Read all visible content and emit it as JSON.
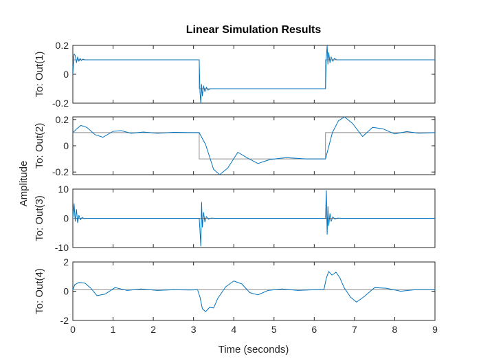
{
  "chart_data": {
    "type": "line",
    "title": "Linear Simulation Results",
    "xlabel": "Time (seconds)",
    "ylabel": "Amplitude",
    "xlim": [
      0,
      9
    ],
    "xticks": [
      0,
      1,
      2,
      3,
      4,
      5,
      6,
      7,
      8,
      9
    ],
    "colors": {
      "response": "#0072BD",
      "input": "#8c8c8c"
    },
    "panels": [
      {
        "ylabel": "To: Out(1)",
        "ylim": [
          -0.2,
          0.2
        ],
        "yticks": [
          -0.2,
          0,
          0.2
        ],
        "input": {
          "x": [
            0,
            3.14,
            3.14,
            6.28,
            6.28,
            9
          ],
          "y": [
            0.1,
            0.1,
            -0.1,
            -0.1,
            0.1,
            0.1
          ]
        },
        "response": {
          "x": [
            0,
            0.03,
            0.06,
            0.09,
            0.12,
            0.15,
            0.18,
            0.21,
            0.25,
            0.3,
            0.4,
            3.14,
            3.16,
            3.18,
            3.2,
            3.22,
            3.25,
            3.28,
            3.32,
            3.36,
            3.42,
            3.5,
            6.28,
            6.3,
            6.32,
            6.34,
            6.36,
            6.39,
            6.42,
            6.46,
            6.5,
            6.56,
            6.64,
            9
          ],
          "y": [
            0,
            0.14,
            0.13,
            0.08,
            0.12,
            0.09,
            0.11,
            0.095,
            0.105,
            0.1,
            0.1,
            0.1,
            -0.12,
            -0.2,
            -0.07,
            -0.15,
            -0.08,
            -0.12,
            -0.09,
            -0.11,
            -0.1,
            -0.1,
            -0.1,
            0.12,
            0.2,
            0.07,
            0.15,
            0.08,
            0.12,
            0.09,
            0.11,
            0.1,
            0.1,
            0.1
          ]
        }
      },
      {
        "ylabel": "To: Out(2)",
        "ylim": [
          -0.22,
          0.22
        ],
        "yticks": [
          -0.2,
          0,
          0.2
        ],
        "input": {
          "x": [
            0,
            3.14,
            3.14,
            6.28,
            6.28,
            9
          ],
          "y": [
            0.1,
            0.1,
            -0.1,
            -0.1,
            0.1,
            0.1
          ]
        },
        "response": {
          "x": [
            0,
            0.1,
            0.2,
            0.35,
            0.55,
            0.75,
            1.0,
            1.2,
            1.45,
            1.75,
            2.1,
            2.5,
            2.9,
            3.14,
            3.3,
            3.5,
            3.65,
            3.85,
            4.1,
            4.35,
            4.6,
            4.9,
            5.3,
            5.8,
            6.28,
            6.45,
            6.6,
            6.75,
            6.95,
            7.2,
            7.45,
            7.7,
            8.0,
            8.3,
            8.6,
            9.0
          ],
          "y": [
            0.1,
            0.13,
            0.155,
            0.14,
            0.085,
            0.065,
            0.11,
            0.115,
            0.095,
            0.105,
            0.095,
            0.102,
            0.1,
            0.1,
            0.01,
            -0.18,
            -0.22,
            -0.17,
            -0.05,
            -0.095,
            -0.135,
            -0.105,
            -0.09,
            -0.1,
            -0.1,
            0.1,
            0.19,
            0.22,
            0.17,
            0.07,
            0.14,
            0.13,
            0.09,
            0.108,
            0.096,
            0.1
          ]
        }
      },
      {
        "ylabel": "To: Out(3)",
        "ylim": [
          -10,
          10
        ],
        "yticks": [
          -10,
          0,
          10
        ],
        "input": {
          "x": [
            0,
            9
          ],
          "y": [
            0,
            0
          ]
        },
        "response": {
          "x": [
            0,
            0.03,
            0.06,
            0.09,
            0.12,
            0.15,
            0.19,
            0.23,
            0.28,
            0.35,
            3.1,
            3.14,
            3.16,
            3.18,
            3.2,
            3.22,
            3.25,
            3.28,
            3.32,
            3.37,
            3.44,
            3.55,
            6.24,
            6.28,
            6.3,
            6.32,
            6.34,
            6.36,
            6.39,
            6.42,
            6.46,
            6.51,
            6.58,
            6.7,
            9.0
          ],
          "y": [
            0,
            5,
            -1,
            3,
            -1.5,
            1,
            -0.5,
            0.3,
            -0.1,
            0,
            0,
            0,
            -4,
            -9.5,
            5.5,
            -3,
            2,
            -1.2,
            0.6,
            -0.3,
            0.1,
            0,
            0,
            0,
            9.5,
            -5.5,
            4,
            -2.5,
            1.6,
            -1,
            0.5,
            -0.25,
            0.1,
            0,
            0
          ]
        }
      },
      {
        "ylabel": "To: Out(4)",
        "ylim": [
          -2,
          2
        ],
        "yticks": [
          -2,
          0,
          2
        ],
        "input": {
          "x": [
            0,
            9
          ],
          "y": [
            0.1,
            0.1
          ]
        },
        "response": {
          "x": [
            0,
            0.05,
            0.15,
            0.3,
            0.45,
            0.6,
            0.8,
            1.05,
            1.35,
            1.7,
            2.1,
            2.5,
            2.9,
            3.1,
            3.16,
            3.22,
            3.3,
            3.4,
            3.5,
            3.6,
            3.8,
            4.0,
            4.2,
            4.4,
            4.6,
            4.85,
            5.2,
            5.6,
            6.0,
            6.24,
            6.3,
            6.36,
            6.44,
            6.54,
            6.64,
            6.74,
            6.9,
            7.05,
            7.25,
            7.5,
            7.8,
            8.15,
            8.5,
            9.0
          ],
          "y": [
            0.1,
            0.45,
            0.6,
            0.55,
            0.2,
            -0.3,
            -0.2,
            0.25,
            0.05,
            0.15,
            0.05,
            0.1,
            0.08,
            0.1,
            -0.4,
            -1.2,
            -1.4,
            -1.1,
            -1.15,
            -0.5,
            0.3,
            0.7,
            0.5,
            -0.1,
            -0.25,
            0.05,
            0.15,
            0.05,
            0.1,
            0.1,
            0.9,
            1.35,
            1.1,
            1.3,
            0.9,
            0.25,
            -0.4,
            -0.75,
            -0.35,
            0.25,
            0.2,
            0.0,
            0.1,
            0.1
          ]
        }
      }
    ]
  }
}
